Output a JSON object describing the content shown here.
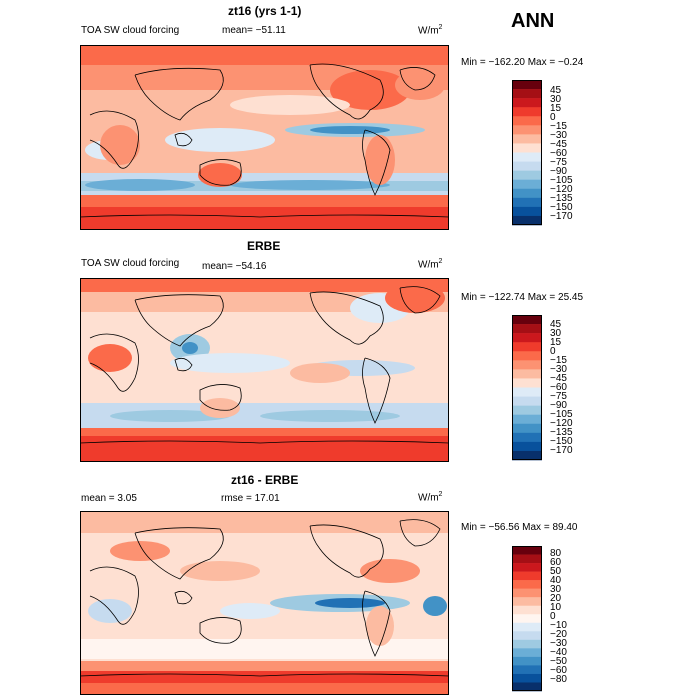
{
  "season": "ANN",
  "palettes": {
    "main": [
      "#67000d",
      "#a50f15",
      "#cb181d",
      "#ef3b2c",
      "#fb6a4a",
      "#fc9272",
      "#fcbba1",
      "#fee0d2",
      "#deebf7",
      "#c6dbef",
      "#9ecae1",
      "#6baed6",
      "#4292c6",
      "#2171b5",
      "#08519c",
      "#08306b"
    ],
    "diff": [
      "#67000d",
      "#a50f15",
      "#cb181d",
      "#ef3b2c",
      "#fb6a4a",
      "#fc9272",
      "#fcbba1",
      "#fee0d2",
      "#fff5f0",
      "#deebf7",
      "#c6dbef",
      "#9ecae1",
      "#6baed6",
      "#4292c6",
      "#2171b5",
      "#08519c",
      "#08306b"
    ]
  },
  "panels": [
    {
      "title": "zt16 (yrs 1-1)",
      "left_label": "TOA SW cloud forcing",
      "stat1": "mean=  −51.11",
      "stat2": "",
      "units": "W/m",
      "units_sup": "2",
      "minmax": "Min = −162.20  Max =   −0.24",
      "levels": [
        "45",
        "30",
        "15",
        "0",
        "−15",
        "−30",
        "−45",
        "−60",
        "−75",
        "−90",
        "−105",
        "−120",
        "−135",
        "−150",
        "−170"
      ],
      "base": "#fcbba1"
    },
    {
      "title": "ERBE",
      "left_label": "TOA SW cloud forcing",
      "stat1": "mean=  −54.16",
      "stat2": "",
      "units": "W/m",
      "units_sup": "2",
      "minmax": "Min = −122.74  Max =   25.45",
      "levels": [
        "45",
        "30",
        "15",
        "0",
        "−15",
        "−30",
        "−45",
        "−60",
        "−75",
        "−90",
        "−105",
        "−120",
        "−135",
        "−150",
        "−170"
      ],
      "base": "#fee0d2"
    },
    {
      "title": "zt16 - ERBE",
      "left_label": "mean =     3.05",
      "stat1": "rmse =   17.01",
      "stat2": "",
      "units": "W/m",
      "units_sup": "2",
      "minmax": "Min = −56.56  Max =   89.40",
      "levels": [
        "80",
        "60",
        "50",
        "40",
        "30",
        "20",
        "10",
        "0",
        "−10",
        "−20",
        "−30",
        "−40",
        "−50",
        "−60",
        "−80"
      ],
      "base": "#fee0d2"
    }
  ],
  "chart_data": {
    "type": "heatmap",
    "title": "TOA SW cloud forcing (ANN)",
    "panels": [
      {
        "name": "zt16 (yrs 1-1)",
        "mean": -51.11,
        "min": -162.2,
        "max": -0.24,
        "units": "W/m2",
        "contour_levels": [
          45,
          30,
          15,
          0,
          -15,
          -30,
          -45,
          -60,
          -75,
          -90,
          -105,
          -120,
          -135,
          -150,
          -170
        ]
      },
      {
        "name": "ERBE",
        "mean": -54.16,
        "min": -122.74,
        "max": 25.45,
        "units": "W/m2",
        "contour_levels": [
          45,
          30,
          15,
          0,
          -15,
          -30,
          -45,
          -60,
          -75,
          -90,
          -105,
          -120,
          -135,
          -150,
          -170
        ]
      },
      {
        "name": "zt16 - ERBE",
        "mean": 3.05,
        "rmse": 17.01,
        "min": -56.56,
        "max": 89.4,
        "units": "W/m2",
        "contour_levels": [
          80,
          60,
          50,
          40,
          30,
          20,
          10,
          0,
          -10,
          -20,
          -30,
          -40,
          -50,
          -60,
          -80
        ]
      }
    ]
  }
}
